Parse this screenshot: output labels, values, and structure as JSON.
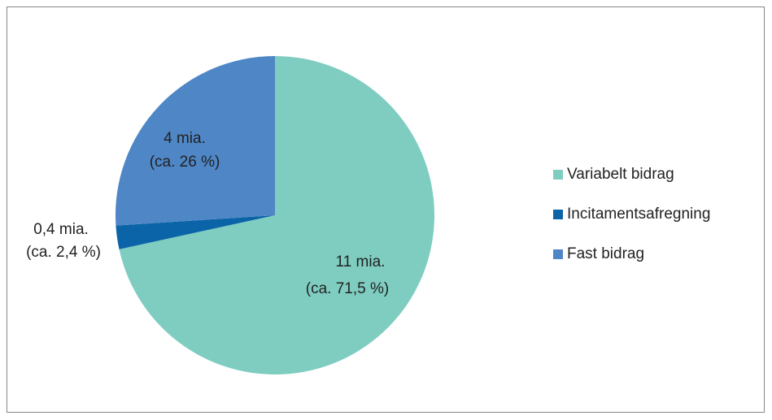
{
  "chart_data": {
    "type": "pie",
    "categories": [
      "Variabelt bidrag",
      "Incitamentsafregning",
      "Fast bidrag"
    ],
    "values": [
      71.5,
      2.4,
      26
    ],
    "value_labels": [
      "(ca. 71,5 %)",
      "(ca. 2,4 %)",
      "(ca. 26 %)"
    ],
    "amounts": [
      11,
      0.4,
      4
    ],
    "amount_labels": [
      "11 mia.",
      "0,4 mia.",
      "4 mia."
    ],
    "colors": [
      "#7ecdc0",
      "#0b64a8",
      "#4f86c6"
    ],
    "legend": "right"
  }
}
